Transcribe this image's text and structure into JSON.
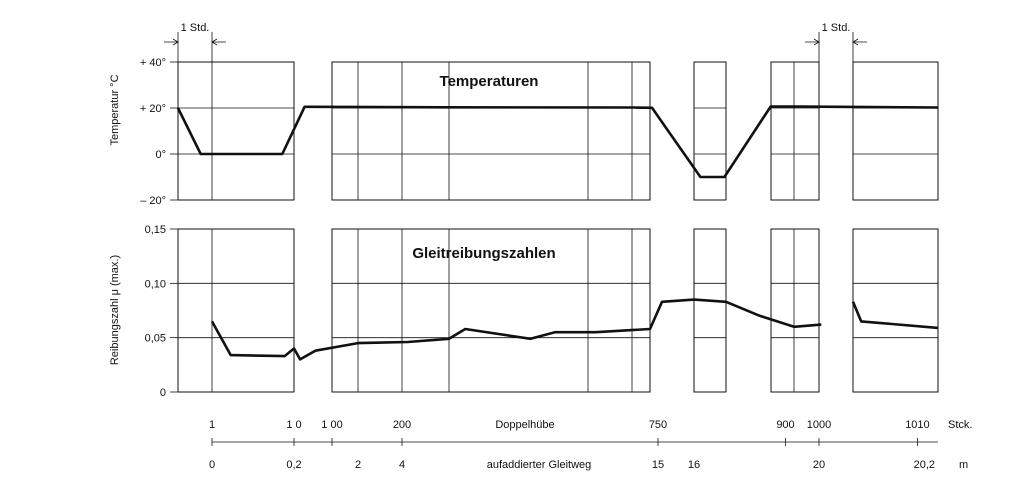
{
  "chart_data": {
    "panels": [
      {
        "type": "line",
        "title": "Temperaturen",
        "ylabel": "Temperatur °C",
        "ylim": [
          -20,
          40
        ],
        "yticks": [
          {
            "value": 40,
            "label": "+ 40°"
          },
          {
            "value": 20,
            "label": "+ 20°"
          },
          {
            "value": 0,
            "label": "0°"
          },
          {
            "value": -20,
            "label": "– 20°"
          }
        ],
        "series": [
          {
            "points": [
              [
                0,
                20
              ],
              [
                1,
                0
              ],
              [
                4.5,
                0
              ],
              [
                5.7,
                20.5
              ],
              [
                6,
                20.5
              ],
              [
                12,
                20.3
              ],
              [
                19,
                20.2
              ],
              [
                19.7,
                20.1
              ],
              [
                22.4,
                -10
              ],
              [
                23.9,
                -10
              ],
              [
                26.5,
                20.6
              ],
              [
                28,
                20.6
              ],
              [
                30,
                20.5
              ],
              [
                37,
                20.2
              ]
            ]
          }
        ]
      },
      {
        "type": "line",
        "title": "Gleitreibungszahlen",
        "ylabel": "Reibungszahl μ (max.)",
        "ylim": [
          0,
          0.15
        ],
        "yticks": [
          {
            "value": 0.15,
            "label": "0,15"
          },
          {
            "value": 0.1,
            "label": "0,10"
          },
          {
            "value": 0.05,
            "label": "0,05"
          },
          {
            "value": 0,
            "label": "0"
          }
        ],
        "series": [
          {
            "points": [
              [
                1.5,
                0.065
              ],
              [
                2.3,
                0.034
              ],
              [
                4.6,
                0.033
              ],
              [
                5.0,
                0.04
              ],
              [
                5.4,
                0.03
              ],
              [
                6.4,
                0.038
              ],
              [
                7.8,
                0.045
              ],
              [
                10.0,
                0.046
              ],
              [
                12.2,
                0.049
              ],
              [
                12.8,
                0.058
              ],
              [
                15.2,
                0.049
              ],
              [
                16.1,
                0.055
              ],
              [
                17.6,
                0.055
              ],
              [
                19.6,
                0.058
              ],
              [
                20.2,
                0.083
              ],
              [
                22.0,
                0.085
              ],
              [
                24.0,
                0.083
              ],
              [
                26.0,
                0.07
              ],
              [
                27.6,
                0.06
              ],
              [
                29.4,
                0.062
              ]
            ]
          },
          {
            "points": [
              [
                30.8,
                0.083
              ],
              [
                31.4,
                0.065
              ],
              [
                37.0,
                0.059
              ]
            ]
          }
        ]
      }
    ],
    "x_axis_strokes": {
      "label": "Doppelhübe",
      "unit": "Stck.",
      "ticks": [
        {
          "pos": 1.5,
          "label": "1"
        },
        {
          "pos": 5.0,
          "label": "1 0"
        },
        {
          "pos": 7.5,
          "label": "1 00"
        },
        {
          "pos": 9.7,
          "label": "200"
        },
        {
          "pos": 20.0,
          "label": "750"
        },
        {
          "pos": 27.2,
          "label": "900"
        },
        {
          "pos": 29.3,
          "label": "1000"
        },
        {
          "pos": 35.5,
          "label": "1010"
        }
      ]
    },
    "x_axis_distance": {
      "label": "aufaddierter Gleitweg",
      "unit": "m",
      "ticks": [
        {
          "pos": 1.5,
          "label": "0"
        },
        {
          "pos": 5.0,
          "label": "0,2"
        },
        {
          "pos": 7.8,
          "label": "2"
        },
        {
          "pos": 9.7,
          "label": "4"
        },
        {
          "pos": 20.0,
          "label": "15"
        },
        {
          "pos": 22.0,
          "label": "16"
        },
        {
          "pos": 29.3,
          "label": "20"
        },
        {
          "pos": 36.0,
          "label": "20,2"
        }
      ]
    },
    "annotations": [
      {
        "label": "1 Std.",
        "span": [
          0,
          1.5
        ]
      },
      {
        "label": "1 Std.",
        "span": [
          29.3,
          30.8
        ]
      }
    ],
    "grid": true
  }
}
